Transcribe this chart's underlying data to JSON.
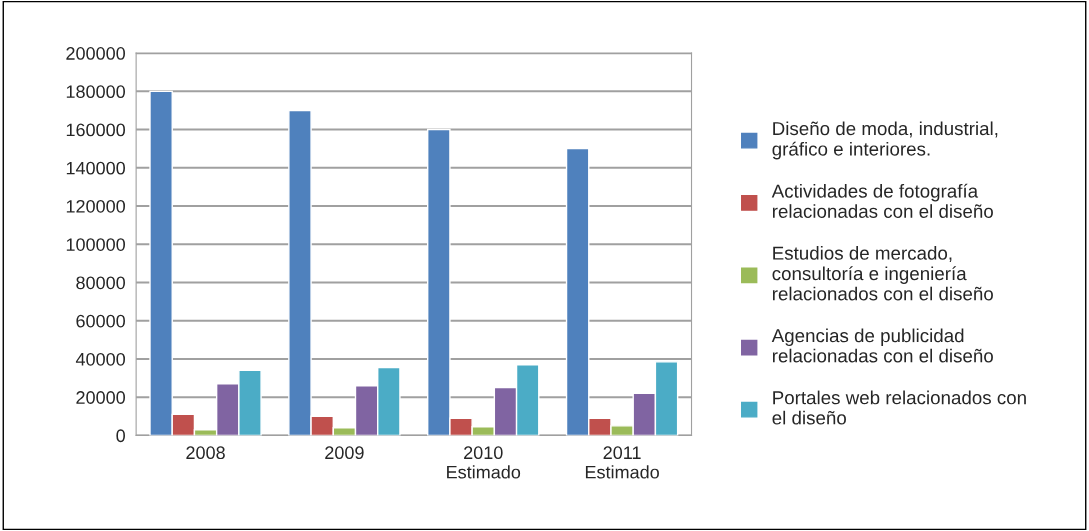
{
  "chart_data": {
    "type": "bar",
    "categories": [
      "2008",
      "2009",
      "2010\nEstimado",
      "2011\nEstimado"
    ],
    "series": [
      {
        "name": "Diseño de moda, industrial,\ngráfico e interiores.",
        "color": "#4f81bd",
        "values": [
          180000,
          170000,
          160000,
          150000
        ]
      },
      {
        "name": "Actividades de fotografía\nrelacionadas con el diseño",
        "color": "#c0504d",
        "values": [
          11000,
          10000,
          9000,
          9000
        ]
      },
      {
        "name": "Estudios de mercado,\nconsultoría e ingeniería\nrelacionados con el diseño",
        "color": "#9bbb59",
        "values": [
          3000,
          4000,
          4500,
          5000
        ]
      },
      {
        "name": "Agencias de publicidad\nrelacionadas con el diseño",
        "color": "#8064a2",
        "values": [
          27000,
          26000,
          25000,
          22000
        ]
      },
      {
        "name": "Portales web relacionados con\nel diseño",
        "color": "#4bacc6",
        "values": [
          34000,
          35500,
          37000,
          38500
        ]
      }
    ],
    "ylim": [
      0,
      200000
    ],
    "yticks": [
      0,
      20000,
      40000,
      60000,
      80000,
      100000,
      120000,
      140000,
      160000,
      180000,
      200000
    ],
    "grid": "y",
    "legend": "right"
  }
}
